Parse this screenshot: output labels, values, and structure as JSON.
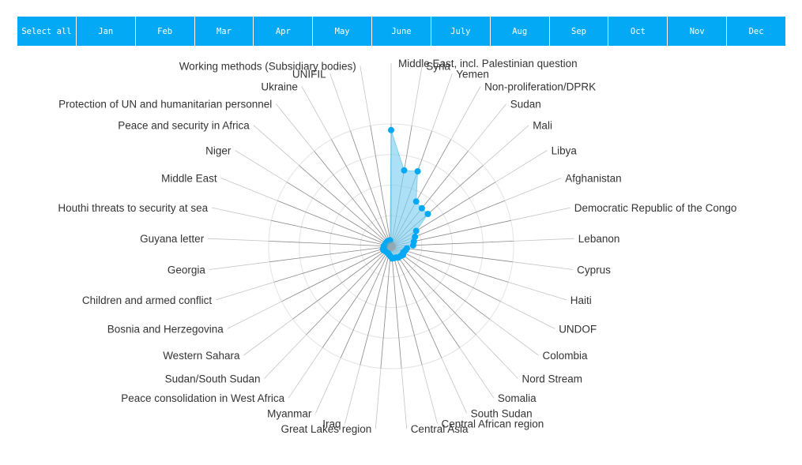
{
  "months": {
    "items": [
      "Select all",
      "Jan",
      "Feb",
      "Mar",
      "Apr",
      "May",
      "June",
      "July",
      "Aug",
      "Sep",
      "Oct",
      "Nov",
      "Dec"
    ]
  },
  "colors": {
    "tab_bg": "#03a9f4",
    "series_fill": "#7fd0f3",
    "series_point": "#03a9f4",
    "spoke": "#888888",
    "grid": "#e3e3e3"
  },
  "chart_data": {
    "type": "radar",
    "title": "",
    "grid": true,
    "legend": "none",
    "axis_max": 100,
    "categories": [
      "Middle East, incl. Palestinian question",
      "Syria",
      "Yemen",
      "Non-proliferation/DPRK",
      "Sudan",
      "Mali",
      "Libya",
      "Afghanistan",
      "Democratic Republic of the Congo",
      "Lebanon",
      "Cyprus",
      "Haiti",
      "UNDOF",
      "Colombia",
      "Nord Stream",
      "Somalia",
      "South Sudan",
      "Central African region",
      "Central Asia",
      "Great Lakes region",
      "Iraq",
      "Myanmar",
      "Peace consolidation in West Africa",
      "Sudan/South Sudan",
      "Western Sahara",
      "Bosnia and Herzegovina",
      "Children and armed conflict",
      "Georgia",
      "Guyana letter",
      "Houthi threats to security at sea",
      "Middle East",
      "Niger",
      "Peace and security in Africa",
      "Protection of UN and humanitarian personnel",
      "Ukraine",
      "UNIFIL",
      "Working methods (Subsidiary bodies)"
    ],
    "series": [
      {
        "values": [
          95,
          63,
          65,
          42,
          40,
          40,
          24,
          21,
          19,
          18,
          13,
          12,
          11,
          12,
          11,
          11,
          10,
          10,
          10,
          8,
          7,
          6,
          6,
          6,
          6,
          7,
          7,
          6,
          6,
          5,
          5,
          5,
          5,
          5,
          5,
          5,
          5
        ]
      }
    ]
  }
}
